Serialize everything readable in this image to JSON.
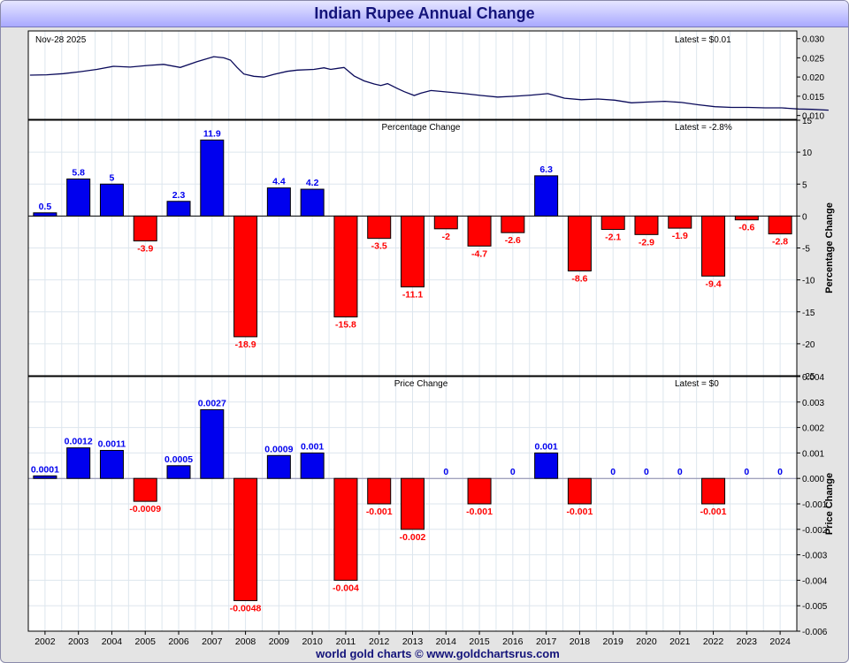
{
  "title": "Indian Rupee Annual Change",
  "footer": "world gold charts © www.goldchartsrus.com",
  "colors": {
    "positive": "#0000ee",
    "negative": "#ff0000",
    "line": "#0a0a5a",
    "title": "#14147a"
  },
  "chart_data": [
    {
      "type": "line",
      "panel": "price",
      "date_label": "Nov-28  2025",
      "latest_label": "Latest = $0.01",
      "ylim": [
        0.009,
        0.032
      ],
      "yticks": [
        "0.010",
        "0.015",
        "0.020",
        "0.025",
        "0.030"
      ],
      "grid": false,
      "series": [
        {
          "x": [
            2002.0,
            2002.5,
            2003.0,
            2003.5,
            2004.0,
            2004.5,
            2005.0,
            2005.5,
            2006.0,
            2006.5,
            2007.0,
            2007.5,
            2007.8,
            2008.0,
            2008.2,
            2008.4,
            2008.7,
            2009.0,
            2009.3,
            2009.7,
            2010.0,
            2010.5,
            2010.8,
            2011.0,
            2011.4,
            2011.7,
            2012.0,
            2012.3,
            2012.5,
            2012.7,
            2013.0,
            2013.2,
            2013.5,
            2013.7,
            2014.0,
            2014.5,
            2015.0,
            2015.5,
            2016.0,
            2016.5,
            2017.0,
            2017.5,
            2018.0,
            2018.5,
            2019.0,
            2019.5,
            2020.0,
            2020.5,
            2021.0,
            2021.5,
            2022.0,
            2022.5,
            2023.0,
            2023.5,
            2024.0,
            2024.5,
            2025.0,
            2025.4,
            2025.9
          ],
          "y": [
            0.0205,
            0.0206,
            0.0209,
            0.0214,
            0.022,
            0.0228,
            0.0226,
            0.023,
            0.0233,
            0.0225,
            0.024,
            0.0253,
            0.025,
            0.0244,
            0.0225,
            0.0208,
            0.0202,
            0.02,
            0.0207,
            0.0215,
            0.0218,
            0.022,
            0.0224,
            0.022,
            0.0225,
            0.0203,
            0.019,
            0.0182,
            0.0178,
            0.0183,
            0.017,
            0.0162,
            0.0152,
            0.0158,
            0.0165,
            0.0161,
            0.0157,
            0.0152,
            0.0148,
            0.015,
            0.0153,
            0.0157,
            0.0145,
            0.0141,
            0.0143,
            0.014,
            0.0133,
            0.0135,
            0.0137,
            0.0134,
            0.0128,
            0.0123,
            0.0121,
            0.0121,
            0.012,
            0.012,
            0.0117,
            0.0116,
            0.0114
          ]
        }
      ]
    },
    {
      "type": "bar",
      "panel": "percentage",
      "title": "Percentage Change",
      "latest_label": "Latest = -2.8%",
      "ylabel": "Percentage Change",
      "ylim": [
        -25,
        15
      ],
      "yticks": [
        "15",
        "10",
        "5",
        "0",
        "-5",
        "-10",
        "-15",
        "-20",
        "-25"
      ],
      "categories": [
        "2002",
        "2003",
        "2004",
        "2005",
        "2006",
        "2007",
        "2008",
        "2009",
        "2010",
        "2011",
        "2012",
        "2013",
        "2014",
        "2015",
        "2016",
        "2017",
        "2018",
        "2019",
        "2020",
        "2021",
        "2022",
        "2023",
        "2024"
      ],
      "values": [
        0.5,
        5.8,
        5,
        -3.9,
        2.3,
        11.9,
        -18.9,
        4.4,
        4.2,
        -15.8,
        -3.5,
        -11.1,
        -2,
        -4.7,
        -2.6,
        6.3,
        -8.6,
        -2.1,
        -2.9,
        -1.9,
        -9.4,
        -0.6,
        -2.8
      ],
      "labels": [
        "0.5",
        "5.8",
        "5",
        "-3.9",
        "2.3",
        "11.9",
        "-18.9",
        "4.4",
        "4.2",
        "-15.8",
        "-3.5",
        "-11.1",
        "-2",
        "-4.7",
        "-2.6",
        "6.3",
        "-8.6",
        "-2.1",
        "-2.9",
        "-1.9",
        "-9.4",
        "-0.6",
        "-2.8"
      ]
    },
    {
      "type": "bar",
      "panel": "price_change",
      "title": "Price Change",
      "latest_label": "Latest = $0",
      "ylabel": "Price Change",
      "ylim": [
        -0.006,
        0.004
      ],
      "yticks": [
        "0.004",
        "0.003",
        "0.002",
        "0.001",
        "0.000",
        "-0.001",
        "-0.002",
        "-0.003",
        "-0.004",
        "-0.005",
        "-0.006"
      ],
      "categories": [
        "2002",
        "2003",
        "2004",
        "2005",
        "2006",
        "2007",
        "2008",
        "2009",
        "2010",
        "2011",
        "2012",
        "2013",
        "2014",
        "2015",
        "2016",
        "2017",
        "2018",
        "2019",
        "2020",
        "2021",
        "2022",
        "2023",
        "2024"
      ],
      "values": [
        0.0001,
        0.0012,
        0.0011,
        -0.0009,
        0.0005,
        0.0027,
        -0.0048,
        0.0009,
        0.001,
        -0.004,
        -0.001,
        -0.002,
        0,
        -0.001,
        0,
        0.001,
        -0.001,
        0,
        0,
        0,
        -0.001,
        0,
        0
      ],
      "labels": [
        "0.0001",
        "0.0012",
        "0.0011",
        "-0.0009",
        "0.0005",
        "0.0027",
        "-0.0048",
        "0.0009",
        "0.001",
        "-0.004",
        "-0.001",
        "-0.002",
        "0",
        "-0.001",
        "0",
        "0.001",
        "-0.001",
        "0",
        "0",
        "0",
        "-0.001",
        "0",
        "0"
      ]
    }
  ]
}
